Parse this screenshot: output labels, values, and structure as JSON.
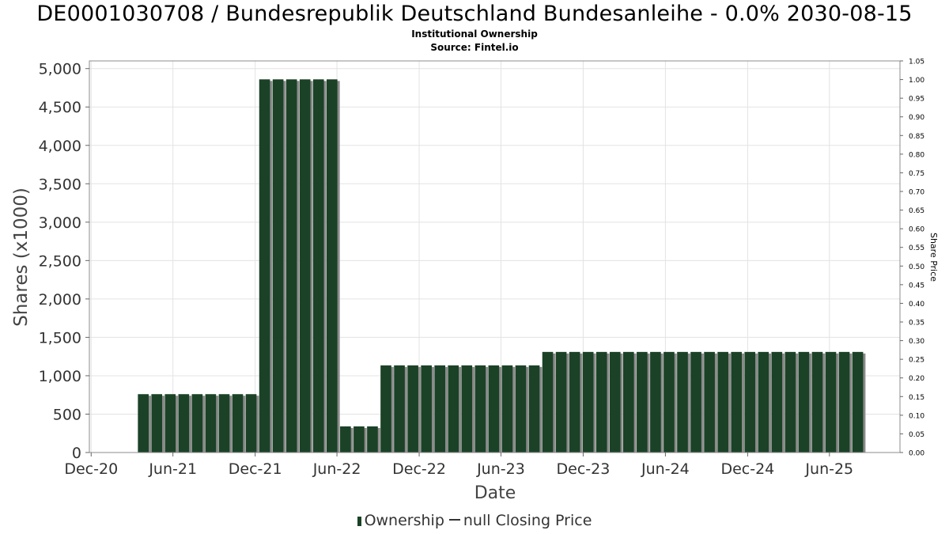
{
  "chart_data": {
    "type": "bar",
    "title": "DE0001030708 / Bundesrepublik Deutschland Bundesanleihe - 0.0% 2030-08-15",
    "subtitle": "Institutional Ownership",
    "source": "Source: Fintel.io",
    "xlabel": "Date",
    "ylabel": "Shares (x1000)",
    "y2label": "Share Price",
    "ylim": [
      0,
      5100
    ],
    "y2lim": [
      0,
      1.05
    ],
    "xlim": [
      "2020-11-27",
      "2025-11-05"
    ],
    "grid": true,
    "legend_position": "bottom",
    "yticks": [
      {
        "value": 0,
        "label": "0"
      },
      {
        "value": 500,
        "label": "500"
      },
      {
        "value": 1000,
        "label": "1,000"
      },
      {
        "value": 1500,
        "label": "1,500"
      },
      {
        "value": 2000,
        "label": "2,000"
      },
      {
        "value": 2500,
        "label": "2,500"
      },
      {
        "value": 3000,
        "label": "3,000"
      },
      {
        "value": 3500,
        "label": "3,500"
      },
      {
        "value": 4000,
        "label": "4,000"
      },
      {
        "value": 4500,
        "label": "4,500"
      },
      {
        "value": 5000,
        "label": "5,000"
      }
    ],
    "y2ticks": [
      {
        "value": 0.0,
        "label": "0.00"
      },
      {
        "value": 0.05,
        "label": "0.05"
      },
      {
        "value": 0.1,
        "label": "0.10"
      },
      {
        "value": 0.15,
        "label": "0.15"
      },
      {
        "value": 0.2,
        "label": "0.20"
      },
      {
        "value": 0.25,
        "label": "0.25"
      },
      {
        "value": 0.3,
        "label": "0.30"
      },
      {
        "value": 0.35,
        "label": "0.35"
      },
      {
        "value": 0.4,
        "label": "0.40"
      },
      {
        "value": 0.45,
        "label": "0.45"
      },
      {
        "value": 0.5,
        "label": "0.50"
      },
      {
        "value": 0.55,
        "label": "0.55"
      },
      {
        "value": 0.6,
        "label": "0.60"
      },
      {
        "value": 0.65,
        "label": "0.65"
      },
      {
        "value": 0.7,
        "label": "0.70"
      },
      {
        "value": 0.75,
        "label": "0.75"
      },
      {
        "value": 0.8,
        "label": "0.80"
      },
      {
        "value": 0.85,
        "label": "0.85"
      },
      {
        "value": 0.9,
        "label": "0.90"
      },
      {
        "value": 0.95,
        "label": "0.95"
      },
      {
        "value": 1.0,
        "label": "1.00"
      },
      {
        "value": 1.05,
        "label": "1.05"
      }
    ],
    "xticks": [
      {
        "date": "2020-12-01",
        "label": "Dec-20"
      },
      {
        "date": "2021-06-01",
        "label": "Jun-21"
      },
      {
        "date": "2021-12-01",
        "label": "Dec-21"
      },
      {
        "date": "2022-06-01",
        "label": "Jun-22"
      },
      {
        "date": "2022-12-01",
        "label": "Dec-22"
      },
      {
        "date": "2023-06-01",
        "label": "Jun-23"
      },
      {
        "date": "2023-12-01",
        "label": "Dec-23"
      },
      {
        "date": "2024-06-01",
        "label": "Jun-24"
      },
      {
        "date": "2024-12-01",
        "label": "Dec-24"
      },
      {
        "date": "2025-06-01",
        "label": "Jun-25"
      }
    ],
    "bar_width_days": 24,
    "series": [
      {
        "name": "Ownership",
        "color": "#1b4227",
        "shadow_color": "#8a8a8a",
        "points": [
          {
            "date": "2021-03-27",
            "value": 760
          },
          {
            "date": "2021-04-26",
            "value": 760
          },
          {
            "date": "2021-05-26",
            "value": 760
          },
          {
            "date": "2021-06-25",
            "value": 760
          },
          {
            "date": "2021-07-25",
            "value": 760
          },
          {
            "date": "2021-08-24",
            "value": 760
          },
          {
            "date": "2021-09-23",
            "value": 760
          },
          {
            "date": "2021-10-23",
            "value": 760
          },
          {
            "date": "2021-11-22",
            "value": 760
          },
          {
            "date": "2021-12-22",
            "value": 4860
          },
          {
            "date": "2022-01-21",
            "value": 4860
          },
          {
            "date": "2022-02-20",
            "value": 4860
          },
          {
            "date": "2022-03-22",
            "value": 4860
          },
          {
            "date": "2022-04-21",
            "value": 4860
          },
          {
            "date": "2022-05-21",
            "value": 4860
          },
          {
            "date": "2022-06-20",
            "value": 340
          },
          {
            "date": "2022-07-20",
            "value": 340
          },
          {
            "date": "2022-08-19",
            "value": 340
          },
          {
            "date": "2022-09-18",
            "value": 1135
          },
          {
            "date": "2022-10-18",
            "value": 1135
          },
          {
            "date": "2022-11-17",
            "value": 1135
          },
          {
            "date": "2022-12-17",
            "value": 1135
          },
          {
            "date": "2023-01-16",
            "value": 1135
          },
          {
            "date": "2023-02-15",
            "value": 1135
          },
          {
            "date": "2023-03-17",
            "value": 1135
          },
          {
            "date": "2023-04-16",
            "value": 1135
          },
          {
            "date": "2023-05-16",
            "value": 1135
          },
          {
            "date": "2023-06-15",
            "value": 1135
          },
          {
            "date": "2023-07-15",
            "value": 1135
          },
          {
            "date": "2023-08-14",
            "value": 1135
          },
          {
            "date": "2023-09-13",
            "value": 1310
          },
          {
            "date": "2023-10-13",
            "value": 1310
          },
          {
            "date": "2023-11-12",
            "value": 1310
          },
          {
            "date": "2023-12-12",
            "value": 1310
          },
          {
            "date": "2024-01-11",
            "value": 1310
          },
          {
            "date": "2024-02-10",
            "value": 1310
          },
          {
            "date": "2024-03-11",
            "value": 1310
          },
          {
            "date": "2024-04-10",
            "value": 1310
          },
          {
            "date": "2024-05-10",
            "value": 1310
          },
          {
            "date": "2024-06-09",
            "value": 1310
          },
          {
            "date": "2024-07-09",
            "value": 1310
          },
          {
            "date": "2024-08-08",
            "value": 1310
          },
          {
            "date": "2024-09-07",
            "value": 1310
          },
          {
            "date": "2024-10-07",
            "value": 1310
          },
          {
            "date": "2024-11-06",
            "value": 1310
          },
          {
            "date": "2024-12-06",
            "value": 1310
          },
          {
            "date": "2025-01-05",
            "value": 1310
          },
          {
            "date": "2025-02-04",
            "value": 1310
          },
          {
            "date": "2025-03-06",
            "value": 1310
          },
          {
            "date": "2025-04-05",
            "value": 1310
          },
          {
            "date": "2025-05-05",
            "value": 1310
          },
          {
            "date": "2025-06-04",
            "value": 1310
          },
          {
            "date": "2025-07-04",
            "value": 1310
          },
          {
            "date": "2025-08-03",
            "value": 1310
          }
        ]
      },
      {
        "name": "null Closing Price",
        "color": "#333333",
        "points": []
      }
    ]
  }
}
